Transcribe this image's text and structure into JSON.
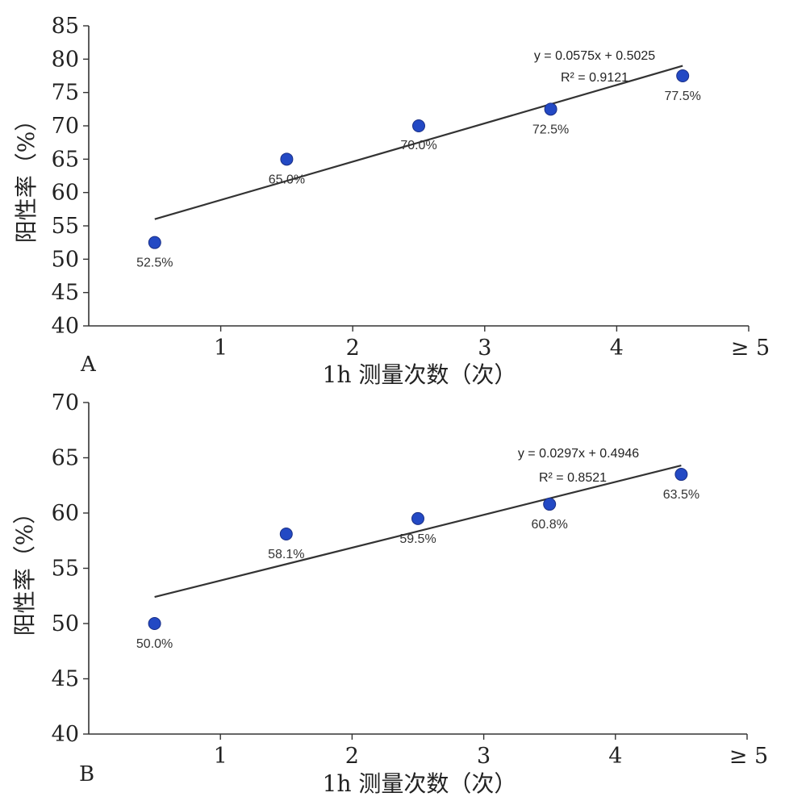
{
  "chart_data": [
    {
      "type": "scatter",
      "panel_label": "A",
      "xlabel": "1h 测量次数（次）",
      "ylabel": "阳性率（%）",
      "x_tick_labels": [
        "1",
        "2",
        "3",
        "4",
        "≥ 5"
      ],
      "x_ticks": [
        1,
        2,
        3,
        4,
        5
      ],
      "xlim": [
        0,
        5
      ],
      "ylim": [
        40,
        85
      ],
      "y_ticks": [
        40,
        45,
        50,
        55,
        60,
        65,
        70,
        75,
        80,
        85
      ],
      "grid": false,
      "series": [
        {
          "x": [
            0.5,
            1.5,
            2.5,
            3.5,
            4.5
          ],
          "y": [
            52.5,
            65.0,
            70.0,
            72.5,
            77.5
          ],
          "labels": [
            "52.5%",
            "65.0%",
            "70.0%",
            "72.5%",
            "77.5%"
          ],
          "color": "#2349c4"
        }
      ],
      "trendline": {
        "x": [
          0.5,
          4.5
        ],
        "y": [
          56.0,
          79.0
        ],
        "equation": "y = 0.0575x + 0.5025",
        "r_squared": "R² = 0.9121"
      }
    },
    {
      "type": "scatter",
      "panel_label": "B",
      "xlabel": "1h 测量次数（次）",
      "ylabel": "阳性率（%）",
      "x_tick_labels": [
        "1",
        "2",
        "3",
        "4",
        "≥ 5"
      ],
      "x_ticks": [
        1,
        2,
        3,
        4,
        5
      ],
      "xlim": [
        0,
        5
      ],
      "ylim": [
        40,
        70
      ],
      "y_ticks": [
        40,
        45,
        50,
        55,
        60,
        65,
        70
      ],
      "grid": false,
      "series": [
        {
          "x": [
            0.5,
            1.5,
            2.5,
            3.5,
            4.5
          ],
          "y": [
            50.0,
            58.1,
            59.5,
            60.8,
            63.5
          ],
          "labels": [
            "50.0%",
            "58.1%",
            "59.5%",
            "60.8%",
            "63.5%"
          ],
          "color": "#2349c4"
        }
      ],
      "trendline": {
        "x": [
          0.5,
          4.5
        ],
        "y": [
          52.4,
          64.3
        ],
        "equation": "y = 0.0297x + 0.4946",
        "r_squared": "R² = 0.8521"
      }
    }
  ]
}
